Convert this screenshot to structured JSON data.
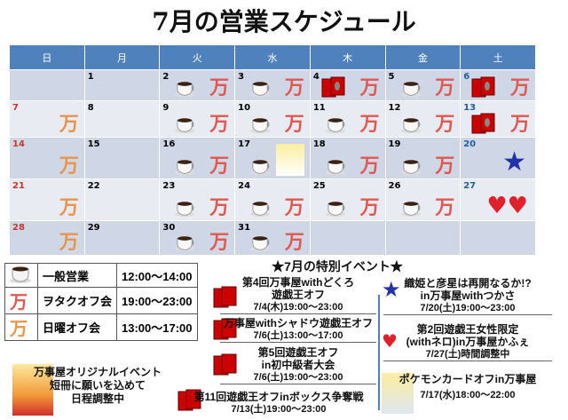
{
  "title": "7月の営業スケジュール",
  "weekdays": [
    "日",
    "月",
    "火",
    "水",
    "木",
    "金",
    "土"
  ],
  "weeks": [
    [
      {
        "d": ""
      },
      {
        "d": "1"
      },
      {
        "d": "2",
        "i": [
          "cup",
          "man"
        ]
      },
      {
        "d": "3",
        "i": [
          "cup",
          "man"
        ]
      },
      {
        "d": "4",
        "i": [
          "cards",
          "man"
        ]
      },
      {
        "d": "5",
        "i": [
          "cup",
          "man"
        ]
      },
      {
        "d": "6",
        "i": [
          "cards",
          "man"
        ]
      }
    ],
    [
      {
        "d": "7",
        "i": [
          "oman"
        ]
      },
      {
        "d": "8"
      },
      {
        "d": "9",
        "i": [
          "cup",
          "man"
        ]
      },
      {
        "d": "10",
        "i": [
          "cup",
          "man"
        ]
      },
      {
        "d": "11",
        "i": [
          "cup",
          "man"
        ]
      },
      {
        "d": "12",
        "i": [
          "cup",
          "man"
        ]
      },
      {
        "d": "13",
        "i": [
          "cards",
          "man"
        ]
      }
    ],
    [
      {
        "d": "14",
        "i": [
          "oman"
        ]
      },
      {
        "d": "15"
      },
      {
        "d": "16",
        "i": [
          "cup",
          "man"
        ]
      },
      {
        "d": "17",
        "i": [
          "cup",
          "character"
        ]
      },
      {
        "d": "18",
        "i": [
          "cup",
          "man"
        ]
      },
      {
        "d": "19",
        "i": [
          "cup",
          "man"
        ]
      },
      {
        "d": "20",
        "i": [
          "star"
        ]
      }
    ],
    [
      {
        "d": "21",
        "i": [
          "oman"
        ]
      },
      {
        "d": "22"
      },
      {
        "d": "23",
        "i": [
          "cup",
          "man"
        ]
      },
      {
        "d": "24",
        "i": [
          "cup",
          "man"
        ]
      },
      {
        "d": "25",
        "i": [
          "cup",
          "man"
        ]
      },
      {
        "d": "26",
        "i": [
          "cup",
          "man"
        ]
      },
      {
        "d": "27",
        "i": [
          "hearts"
        ]
      }
    ],
    [
      {
        "d": "28",
        "i": [
          "oman"
        ]
      },
      {
        "d": "29"
      },
      {
        "d": "30",
        "i": [
          "cup",
          "man"
        ]
      },
      {
        "d": "31",
        "i": [
          "cup",
          "man"
        ]
      },
      {
        "d": ""
      },
      {
        "d": ""
      },
      {
        "d": ""
      }
    ]
  ],
  "man_glyph": "万",
  "legend": [
    {
      "icon": "coffee-cup",
      "name": "一般営業",
      "time": "12:00～14:00"
    },
    {
      "icon": "man-red",
      "name": "ヲタクオフ会",
      "time": "19:00～23:00"
    },
    {
      "icon": "man-orange",
      "name": "日曜オフ会",
      "time": "13:00～17:00"
    }
  ],
  "original_event": {
    "l1": "万事屋オリジナルイベント",
    "l2": "短冊に願いを込めて",
    "l3": "日程調整中"
  },
  "events_title": "★7月の特別イベント★",
  "events": [
    {
      "l1": "第4回万事屋withどくろ",
      "l2": "遊戯王オフ",
      "date": "7/4(木)19:00～23:00"
    },
    {
      "l1": "万事屋withシャドウ遊戯王オフ",
      "date": "7/6(土)13:00～17:00"
    },
    {
      "l1": "第5回遊戯王オフ",
      "l2": "in初中級者大会",
      "date": "7/6(土)19:00～23:00"
    },
    {
      "l1": "第11回遊戯王オフinボックス争奪戦",
      "date": "7/13(土)19:00～23:00"
    },
    {
      "l1": "織姫と彦星は再開なるか!?",
      "l2": "in万事屋withつかさ",
      "date": "7/20(土)19:00～23:00"
    },
    {
      "l1": "第2回遊戯王女性限定",
      "l2": "(withネロ)in万事屋かふぇ",
      "date": "7/27(土)時間調整中"
    },
    {
      "l1": "ポケモンカードオフin万事屋",
      "date": "7/17(水)18:00～22:00"
    }
  ],
  "colors": {
    "header": "#4f81bd",
    "row_odd": "#cfd7e6",
    "row_even": "#e8ebf2",
    "man_red": "#e0584f",
    "man_orange": "#e8944a"
  }
}
